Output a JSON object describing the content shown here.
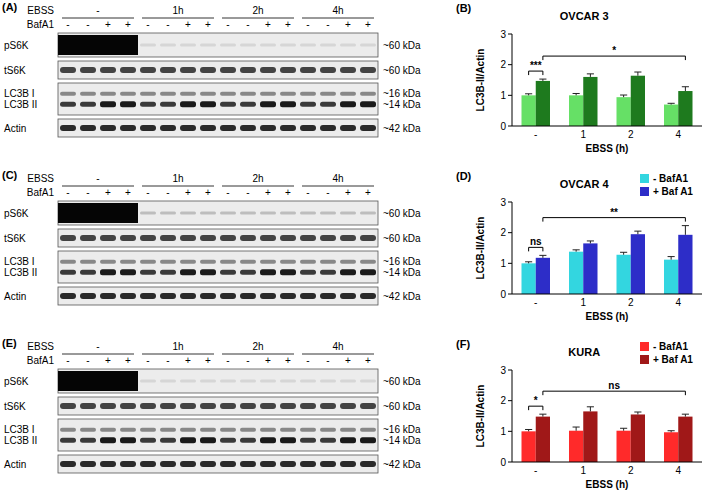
{
  "chart_data": [
    {
      "type": "bar",
      "panel": "(B)",
      "title": "OVCAR 3",
      "x_label": "EBSS (h)",
      "y_label": "LC3B-II/Actin",
      "categories": [
        "-",
        "1",
        "2",
        "4"
      ],
      "series": [
        {
          "color": "#66e066",
          "values": [
            1.0,
            1.0,
            0.94,
            0.7
          ],
          "errors": [
            0.05,
            0.06,
            0.07,
            0.04
          ]
        },
        {
          "color": "#1e7a1e",
          "values": [
            1.47,
            1.6,
            1.64,
            1.14
          ],
          "errors": [
            0.06,
            0.1,
            0.12,
            0.14
          ]
        }
      ],
      "ylim": [
        0,
        3
      ],
      "yticks": [
        0,
        1,
        2,
        3
      ],
      "annotations": [
        {
          "text": "***",
          "from": {
            "series": 0,
            "category": "-"
          },
          "to": {
            "series": 1,
            "category": "-"
          }
        },
        {
          "text": "*",
          "from": {
            "series": 1,
            "category": "-"
          },
          "to": {
            "series": 1,
            "category": "4"
          }
        }
      ]
    },
    {
      "type": "bar",
      "panel": "(D)",
      "title": "OVCAR 4",
      "x_label": "EBSS (h)",
      "y_label": "LC3B-II/Actin",
      "categories": [
        "-",
        "1",
        "2",
        "4"
      ],
      "series": [
        {
          "name": "- BafA1",
          "color": "#33d6e0",
          "values": [
            1.0,
            1.38,
            1.28,
            1.12
          ],
          "errors": [
            0.05,
            0.06,
            0.08,
            0.1
          ]
        },
        {
          "name": "+ Baf A1",
          "color": "#2d2dc8",
          "values": [
            1.18,
            1.65,
            1.95,
            1.93
          ],
          "errors": [
            0.08,
            0.08,
            0.1,
            0.3
          ]
        }
      ],
      "ylim": [
        0,
        3
      ],
      "yticks": [
        0,
        1,
        2,
        3
      ],
      "legend": "top right",
      "annotations": [
        {
          "text": "ns",
          "from": {
            "series": 0,
            "category": "-"
          },
          "to": {
            "series": 1,
            "category": "-"
          }
        },
        {
          "text": "**",
          "from": {
            "series": 1,
            "category": "-"
          },
          "to": {
            "series": 1,
            "category": "4"
          }
        }
      ]
    },
    {
      "type": "bar",
      "panel": "(F)",
      "title": "KURA",
      "x_label": "EBSS (h)",
      "y_label": "LC3B-II/Actin",
      "categories": [
        "-",
        "1",
        "2",
        "4"
      ],
      "series": [
        {
          "name": "- BafA1",
          "color": "#ff2a2a",
          "values": [
            1.0,
            1.02,
            1.02,
            0.97
          ],
          "errors": [
            0.06,
            0.12,
            0.08,
            0.05
          ]
        },
        {
          "name": "+ Baf A1",
          "color": "#a01818",
          "values": [
            1.48,
            1.65,
            1.55,
            1.48
          ],
          "errors": [
            0.08,
            0.15,
            0.08,
            0.08
          ]
        }
      ],
      "ylim": [
        0,
        3
      ],
      "yticks": [
        0,
        1,
        2,
        3
      ],
      "legend": "top right",
      "annotations": [
        {
          "text": "*",
          "from": {
            "series": 0,
            "category": "-"
          },
          "to": {
            "series": 1,
            "category": "-"
          }
        },
        {
          "text": "ns",
          "from": {
            "series": 1,
            "category": "-"
          },
          "to": {
            "series": 1,
            "category": "4"
          }
        }
      ]
    }
  ],
  "blots": [
    {
      "panel": "(A)",
      "conditions": {
        "label": "EBSS",
        "groups": [
          "-",
          "1h",
          "2h",
          "4h"
        ]
      },
      "treatment": {
        "label": "BafA1",
        "lanes": [
          "-",
          "-",
          "+",
          "+",
          "-",
          "-",
          "+",
          "+",
          "-",
          "-",
          "+",
          "+",
          "-",
          "-",
          "+",
          "+"
        ]
      },
      "rows": [
        {
          "label": "pS6K",
          "size": "~60 kDa"
        },
        {
          "label": "tS6K",
          "size": "~60 kDa"
        },
        {
          "labels": [
            "LC3B I",
            "LC3B II"
          ],
          "sizes": [
            "~16 kDa",
            "~14 kDa"
          ]
        },
        {
          "label": "Actin",
          "size": "~42 kDa"
        }
      ]
    },
    {
      "panel": "(C)",
      "conditions": {
        "label": "EBSS",
        "groups": [
          "-",
          "1h",
          "2h",
          "4h"
        ]
      },
      "treatment": {
        "label": "BafA1",
        "lanes": [
          "-",
          "-",
          "+",
          "+",
          "-",
          "-",
          "+",
          "+",
          "-",
          "-",
          "+",
          "+",
          "-",
          "-",
          "+",
          "+"
        ]
      },
      "rows": [
        {
          "label": "pS6K",
          "size": "~60 kDa"
        },
        {
          "label": "tS6K",
          "size": "~60 kDa"
        },
        {
          "labels": [
            "LC3B I",
            "LC3B II"
          ],
          "sizes": [
            "~16 kDa",
            "~14 kDa"
          ]
        },
        {
          "label": "Actin",
          "size": "~42 kDa"
        }
      ]
    },
    {
      "panel": "(E)",
      "conditions": {
        "label": "EBSS",
        "groups": [
          "-",
          "1h",
          "2h",
          "4h"
        ]
      },
      "treatment": {
        "label": "BafA1",
        "lanes": [
          "-",
          "-",
          "+",
          "+",
          "-",
          "-",
          "+",
          "+",
          "-",
          "-",
          "+",
          "+",
          "-",
          "-",
          "+",
          "+"
        ]
      },
      "rows": [
        {
          "label": "pS6K",
          "size": "~60 kDa"
        },
        {
          "label": "tS6K",
          "size": "~60 kDa"
        },
        {
          "labels": [
            "LC3B I",
            "LC3B II"
          ],
          "sizes": [
            "~16 kDa",
            "~14 kDa"
          ]
        },
        {
          "label": "Actin",
          "size": "~42 kDa"
        }
      ]
    }
  ]
}
